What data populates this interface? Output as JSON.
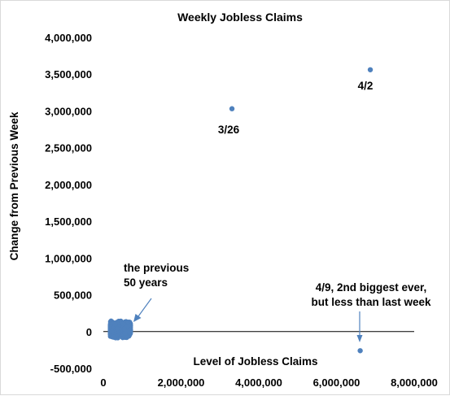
{
  "chart_data": {
    "type": "scatter",
    "title": "Weekly Jobless Claims",
    "xlabel": "Level of Jobless Claims",
    "ylabel": "Change from Previous Week",
    "xlim": [
      0,
      8000000
    ],
    "ylim": [
      -500000,
      4000000
    ],
    "x_ticks": [
      0,
      2000000,
      4000000,
      6000000,
      8000000
    ],
    "x_tick_labels": [
      "0",
      "2,000,000",
      "4,000,000",
      "6,000,000",
      "8,000,000"
    ],
    "y_ticks": [
      4000000,
      3500000,
      3000000,
      2500000,
      2000000,
      1500000,
      1000000,
      500000,
      0,
      -500000
    ],
    "y_tick_labels": [
      "4,000,000",
      "3,500,000",
      "3,000,000",
      "2,500,000",
      "2,000,000",
      "1,500,000",
      "1,000,000",
      "500,000",
      "0",
      "-500,000"
    ],
    "grid": false,
    "legend": "none",
    "marker_color": "#4f81bd",
    "series": [
      {
        "points": [
          {
            "x": 3310000,
            "y": 3030000
          },
          {
            "x": 6870000,
            "y": 3560000
          },
          {
            "x": 6610000,
            "y": -260000
          }
        ]
      }
    ],
    "cluster": {
      "x_range": [
        180000,
        700000
      ],
      "y_range": [
        -120000,
        180000
      ],
      "count": 2600
    },
    "annotations": [
      {
        "id": "lbl-326",
        "text": "3/26"
      },
      {
        "id": "lbl-42",
        "text": "4/2"
      },
      {
        "id": "lbl-49-line1",
        "text": "4/9, 2nd biggest ever,"
      },
      {
        "id": "lbl-49-line2",
        "text": "but less than last week"
      },
      {
        "id": "lbl-prev-line1",
        "text": "the previous"
      },
      {
        "id": "lbl-prev-line2",
        "text": "50 years"
      }
    ]
  }
}
